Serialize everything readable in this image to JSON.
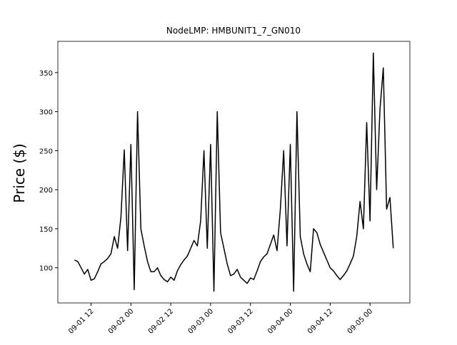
{
  "chart_data": {
    "type": "line",
    "title": "NodeLMP: HMBUNIT1_7_GN010",
    "y_label": "Price ($)",
    "x": [
      "09-01 07",
      "09-01 08",
      "09-01 09",
      "09-01 10",
      "09-01 11",
      "09-01 12",
      "09-01 13",
      "09-01 14",
      "09-01 15",
      "09-01 16",
      "09-01 17",
      "09-01 18",
      "09-01 19",
      "09-01 20",
      "09-01 21",
      "09-01 22",
      "09-01 23",
      "09-02 00",
      "09-02 01",
      "09-02 02",
      "09-02 03",
      "09-02 04",
      "09-02 05",
      "09-02 06",
      "09-02 07",
      "09-02 08",
      "09-02 09",
      "09-02 10",
      "09-02 11",
      "09-02 12",
      "09-02 13",
      "09-02 14",
      "09-02 15",
      "09-02 16",
      "09-02 17",
      "09-02 18",
      "09-02 19",
      "09-02 20",
      "09-02 21",
      "09-02 22",
      "09-02 23",
      "09-03 00",
      "09-03 01",
      "09-03 02",
      "09-03 03",
      "09-03 04",
      "09-03 05",
      "09-03 06",
      "09-03 07",
      "09-03 08",
      "09-03 09",
      "09-03 10",
      "09-03 11",
      "09-03 12",
      "09-03 13",
      "09-03 14",
      "09-03 15",
      "09-03 16",
      "09-03 17",
      "09-03 18",
      "09-03 19",
      "09-03 20",
      "09-03 21",
      "09-03 22",
      "09-03 23",
      "09-04 00",
      "09-04 01",
      "09-04 02",
      "09-04 03",
      "09-04 04",
      "09-04 05",
      "09-04 06",
      "09-04 07",
      "09-04 08",
      "09-04 09",
      "09-04 10",
      "09-04 11",
      "09-04 12",
      "09-04 13",
      "09-04 14",
      "09-04 15",
      "09-04 16",
      "09-04 17",
      "09-04 18",
      "09-04 19",
      "09-04 20",
      "09-04 21",
      "09-04 22",
      "09-04 23",
      "09-05 00",
      "09-05 01",
      "09-05 02",
      "09-05 03",
      "09-05 04",
      "09-05 05",
      "09-05 06",
      "09-05 07"
    ],
    "series": [
      {
        "color": "#000000",
        "values": [
          110,
          108,
          100,
          92,
          98,
          84,
          86,
          95,
          105,
          108,
          112,
          118,
          140,
          125,
          165,
          251,
          122,
          258,
          72,
          300,
          150,
          128,
          108,
          95,
          95,
          100,
          90,
          85,
          82,
          88,
          84,
          96,
          104,
          110,
          115,
          125,
          135,
          128,
          160,
          250,
          125,
          258,
          70,
          300,
          145,
          125,
          105,
          90,
          92,
          98,
          88,
          84,
          80,
          87,
          85,
          96,
          108,
          114,
          118,
          130,
          142,
          122,
          175,
          250,
          128,
          258,
          70,
          300,
          140,
          118,
          105,
          95,
          150,
          145,
          130,
          120,
          110,
          100,
          96,
          90,
          85,
          90,
          96,
          105,
          115,
          140,
          185,
          150,
          286,
          160,
          375,
          200,
          303,
          356,
          175,
          190,
          125
        ]
      }
    ],
    "xlim": [
      "09-01 02",
      "09-05 12"
    ],
    "xticks": [
      "09-01 12",
      "09-02 00",
      "09-02 12",
      "09-03 00",
      "09-03 12",
      "09-04 00",
      "09-04 12",
      "09-05 00"
    ],
    "ylim": [
      55,
      390
    ],
    "yticks": [
      100,
      150,
      200,
      250,
      300,
      350
    ]
  }
}
